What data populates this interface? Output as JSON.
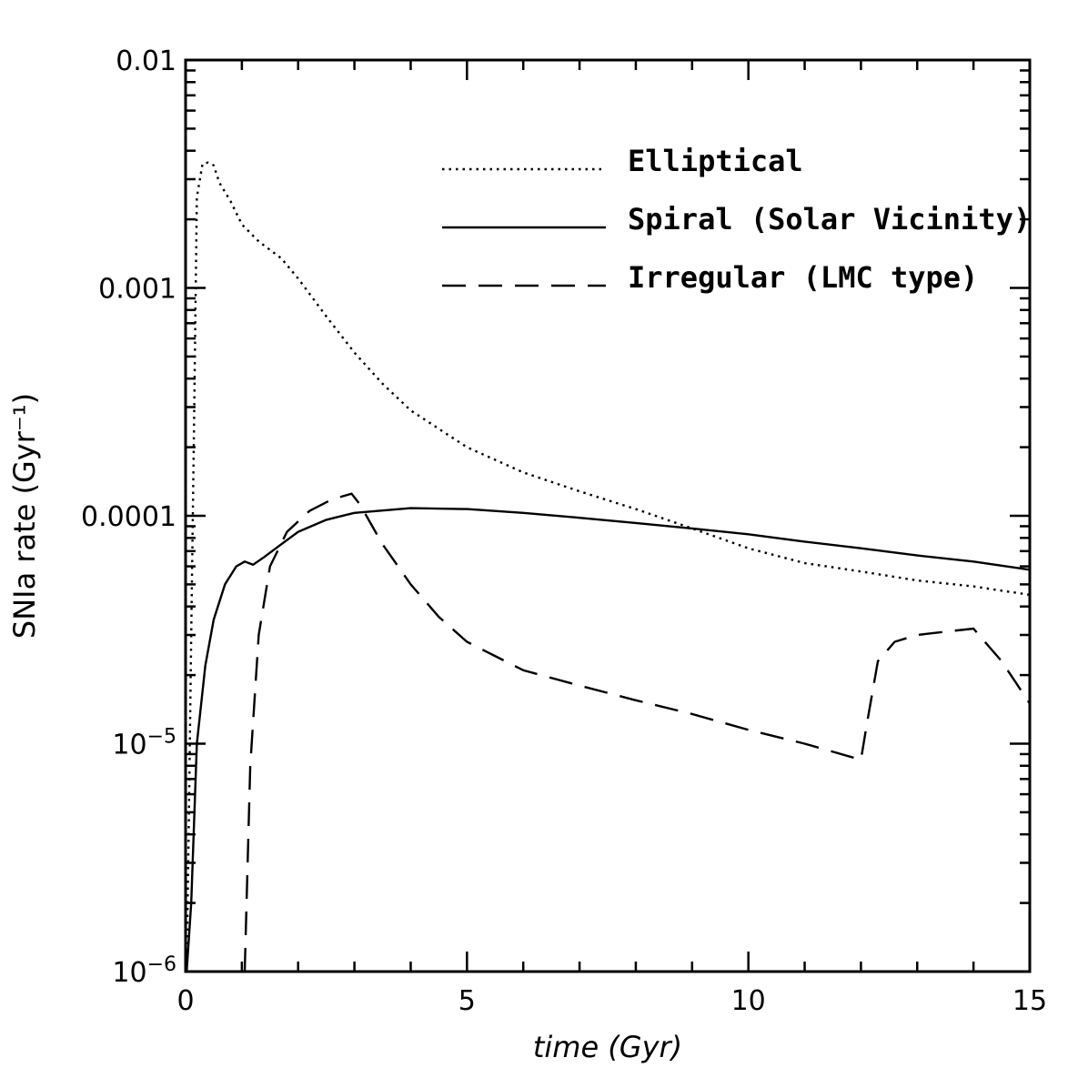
{
  "chart_data": {
    "type": "line",
    "xlabel": "time (Gyr)",
    "ylabel": "SNIa rate (Gyr⁻¹)",
    "xlim": [
      0,
      15
    ],
    "ylim": [
      1e-06,
      0.01
    ],
    "yscale": "log",
    "grid": false,
    "legend_position": "top-right",
    "x_ticks": [
      {
        "value": 0,
        "label": "0"
      },
      {
        "value": 5,
        "label": "5"
      },
      {
        "value": 10,
        "label": "10"
      },
      {
        "value": 15,
        "label": "15"
      }
    ],
    "y_ticks": [
      {
        "value": 1e-06,
        "base": "10",
        "exp": "−6"
      },
      {
        "value": 1e-05,
        "base": "10",
        "exp": "−5"
      },
      {
        "value": 0.0001,
        "base": "0.0001",
        "exp": ""
      },
      {
        "value": 0.001,
        "base": "0.001",
        "exp": ""
      },
      {
        "value": 0.01,
        "base": "0.01",
        "exp": ""
      }
    ],
    "series": [
      {
        "name": "Elliptical",
        "style": "dotted",
        "x": [
          0.02,
          0.06,
          0.1,
          0.15,
          0.2,
          0.3,
          0.4,
          0.5,
          0.6,
          0.8,
          1.0,
          1.3,
          1.7,
          2.0,
          2.5,
          3.0,
          3.5,
          4.0,
          5.0,
          6.0,
          7.0,
          8.0,
          9.0,
          10.0,
          11.0,
          12.0,
          13.0,
          14.0,
          15.0
        ],
        "y": [
          1e-06,
          5e-06,
          3e-05,
          0.00025,
          0.0025,
          0.0035,
          0.00355,
          0.00345,
          0.0029,
          0.0024,
          0.0019,
          0.0016,
          0.00135,
          0.0011,
          0.00075,
          0.00052,
          0.00038,
          0.00029,
          0.0002,
          0.000155,
          0.000128,
          0.000107,
          8.8e-05,
          7.2e-05,
          6.2e-05,
          5.7e-05,
          5.2e-05,
          4.9e-05,
          4.5e-05
        ]
      },
      {
        "name": "Spiral (Solar Vicinity)",
        "style": "solid",
        "x": [
          0.02,
          0.1,
          0.2,
          0.35,
          0.5,
          0.7,
          0.9,
          1.05,
          1.2,
          1.4,
          1.7,
          2.0,
          2.5,
          3.0,
          4.0,
          5.0,
          6.0,
          7.0,
          8.0,
          9.0,
          10.0,
          11.0,
          12.0,
          13.0,
          14.0,
          15.0
        ],
        "y": [
          1e-06,
          2e-06,
          1e-05,
          2.2e-05,
          3.5e-05,
          5e-05,
          6e-05,
          6.3e-05,
          6.1e-05,
          6.6e-05,
          7.5e-05,
          8.5e-05,
          9.6e-05,
          0.000103,
          0.000108,
          0.000107,
          0.000103,
          9.8e-05,
          9.3e-05,
          8.8e-05,
          8.3e-05,
          7.7e-05,
          7.2e-05,
          6.7e-05,
          6.3e-05,
          5.8e-05
        ]
      },
      {
        "name": "Irregular (LMC type)",
        "style": "dashed",
        "x": [
          1.05,
          1.15,
          1.3,
          1.5,
          1.8,
          2.2,
          2.6,
          2.95,
          3.1,
          3.5,
          4.0,
          4.5,
          5.0,
          6.0,
          7.0,
          8.0,
          9.0,
          10.0,
          11.0,
          12.0,
          12.1,
          12.3,
          12.6,
          13.0,
          13.5,
          14.0,
          14.5,
          15.0
        ],
        "y": [
          1e-06,
          8e-06,
          3e-05,
          6e-05,
          8.5e-05,
          0.000105,
          0.000118,
          0.000125,
          0.000112,
          7.5e-05,
          5e-05,
          3.6e-05,
          2.8e-05,
          2.1e-05,
          1.8e-05,
          1.55e-05,
          1.35e-05,
          1.15e-05,
          1e-05,
          8.5e-06,
          1.2e-05,
          2.3e-05,
          2.8e-05,
          3e-05,
          3.1e-05,
          3.2e-05,
          2.3e-05,
          1.5e-05
        ]
      }
    ]
  }
}
